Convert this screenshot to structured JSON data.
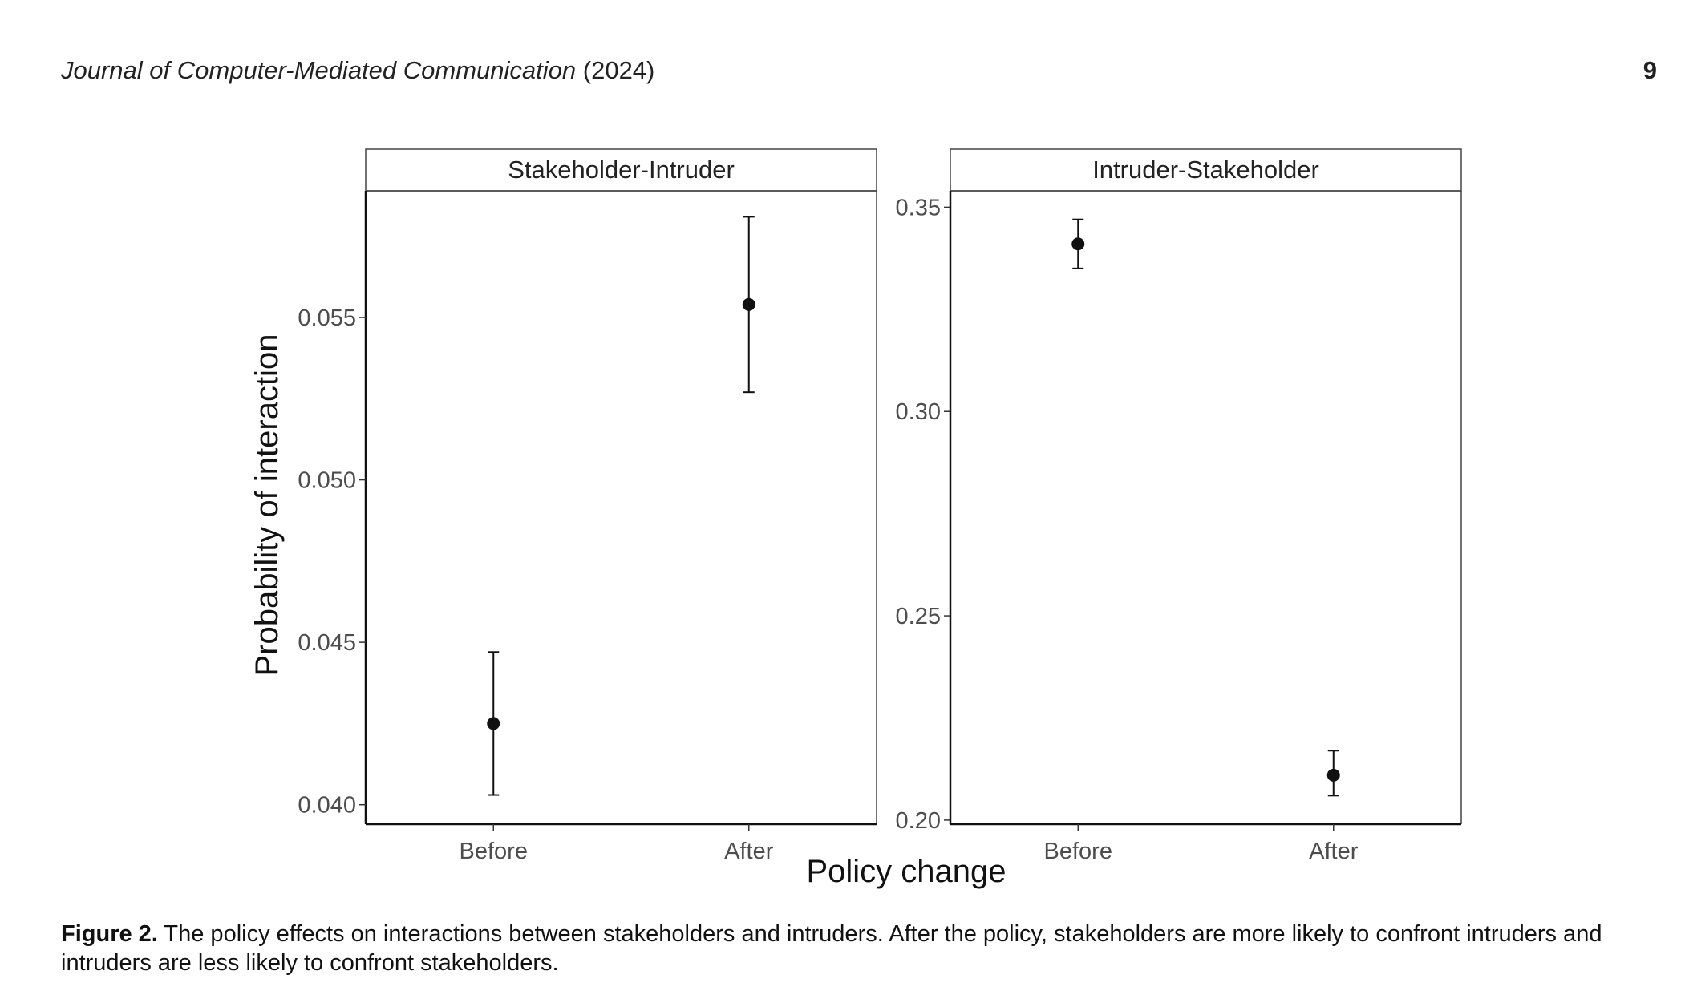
{
  "header": {
    "journal": "Journal of Computer-Mediated Communication",
    "year": "(2024)",
    "page_number": "9"
  },
  "caption": {
    "label": "Figure 2.",
    "text": "The policy effects on interactions between stakeholders and intruders. After the policy, stakeholders are more likely to confront intruders and intruders are less likely to confront stakeholders."
  },
  "chart_data": {
    "type": "scatter",
    "subtype": "point-with-error-bars, faceted",
    "xlabel": "Policy change",
    "ylabel": "Probability of interaction",
    "categories": [
      "Before",
      "After"
    ],
    "marker_color": "#111111",
    "panels": [
      {
        "title": "Stakeholder-Intruder",
        "ylim": [
          0.0394,
          0.0589
        ],
        "yticks": [
          0.04,
          0.045,
          0.05,
          0.055
        ],
        "ytick_labels": [
          "0.040",
          "0.045",
          "0.050",
          "0.055"
        ],
        "points": [
          {
            "x": "Before",
            "y": 0.0425,
            "lower": 0.0403,
            "upper": 0.0447
          },
          {
            "x": "After",
            "y": 0.0554,
            "lower": 0.0527,
            "upper": 0.0581
          }
        ]
      },
      {
        "title": "Intruder-Stakeholder",
        "ylim": [
          0.199,
          0.354
        ],
        "yticks": [
          0.2,
          0.25,
          0.3,
          0.35
        ],
        "ytick_labels": [
          "0.20",
          "0.25",
          "0.30",
          "0.35"
        ],
        "points": [
          {
            "x": "Before",
            "y": 0.341,
            "lower": 0.335,
            "upper": 0.347
          },
          {
            "x": "After",
            "y": 0.211,
            "lower": 0.206,
            "upper": 0.217
          }
        ]
      }
    ]
  }
}
